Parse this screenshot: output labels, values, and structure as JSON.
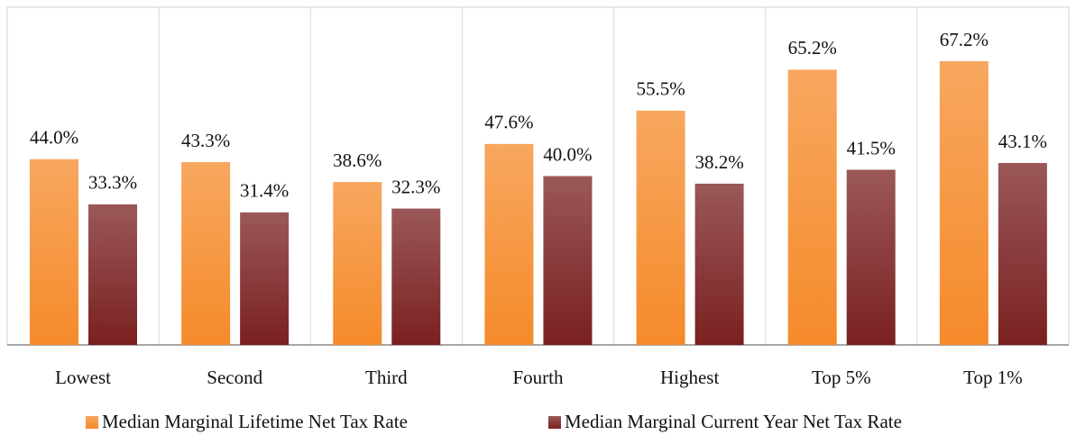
{
  "chart_data": {
    "type": "bar",
    "categories": [
      "Lowest",
      "Second",
      "Third",
      "Fourth",
      "Highest",
      "Top 5%",
      "Top 1%"
    ],
    "series": [
      {
        "name": "Median Marginal Lifetime Net Tax Rate",
        "color": "#f58a2a",
        "values": [
          44.0,
          43.3,
          38.6,
          47.6,
          55.5,
          65.2,
          67.2
        ],
        "value_labels": [
          "44.0%",
          "43.3%",
          "38.6%",
          "47.6%",
          "55.5%",
          "65.2%",
          "67.2%"
        ]
      },
      {
        "name": "Median Marginal Current Year Net Tax Rate",
        "color": "#7a2020",
        "values": [
          33.3,
          31.4,
          32.3,
          40.0,
          38.2,
          41.5,
          43.1
        ],
        "value_labels": [
          "33.3%",
          "31.4%",
          "32.3%",
          "40.0%",
          "38.2%",
          "41.5%",
          "43.1%"
        ]
      }
    ],
    "ylim": [
      0,
      80
    ],
    "legend": "bottom"
  }
}
